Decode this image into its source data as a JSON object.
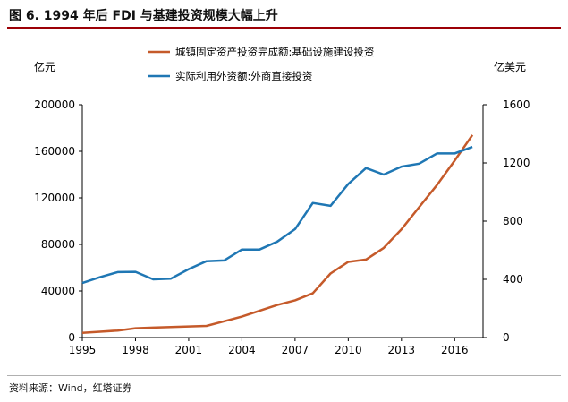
{
  "figure": {
    "title": "图 6. 1994 年后 FDI 与基建投资规模大幅上升",
    "source": "资料来源：Wind，红塔证券",
    "accent_color": "#9c0006"
  },
  "chart_data": {
    "type": "line",
    "x": [
      1995,
      1996,
      1997,
      1998,
      1999,
      2000,
      2001,
      2002,
      2003,
      2004,
      2005,
      2006,
      2007,
      2008,
      2009,
      2010,
      2011,
      2012,
      2013,
      2014,
      2015,
      2016,
      2017
    ],
    "xticks": [
      1995,
      1998,
      2001,
      2004,
      2007,
      2010,
      2013,
      2016
    ],
    "xlim": [
      1995,
      2017.6
    ],
    "y_left": {
      "unit_label": "亿元",
      "lim": [
        0,
        200000
      ],
      "ticks": [
        0,
        40000,
        80000,
        120000,
        160000,
        200000
      ]
    },
    "y_right": {
      "unit_label": "亿美元",
      "lim": [
        0,
        1600
      ],
      "ticks": [
        0,
        400,
        800,
        1200,
        1600
      ]
    },
    "series": [
      {
        "name": "城镇固定资产投资完成额:基础设施建设投资",
        "axis": "left",
        "color": "#c55a2a",
        "values": [
          4000,
          5000,
          6000,
          8000,
          8500,
          9000,
          9500,
          10000,
          14000,
          18000,
          23000,
          28000,
          32000,
          38000,
          55000,
          65000,
          67000,
          77000,
          93000,
          112000,
          131000,
          152000,
          174000
        ]
      },
      {
        "name": "实际利用外资额:外商直接投资",
        "axis": "right",
        "color": "#1f77b4",
        "values": [
          375,
          415,
          450,
          452,
          400,
          405,
          470,
          525,
          530,
          605,
          605,
          660,
          745,
          925,
          905,
          1055,
          1165,
          1120,
          1175,
          1195,
          1265,
          1265,
          1310
        ]
      }
    ],
    "legend_position": "top-center",
    "grid": false
  }
}
